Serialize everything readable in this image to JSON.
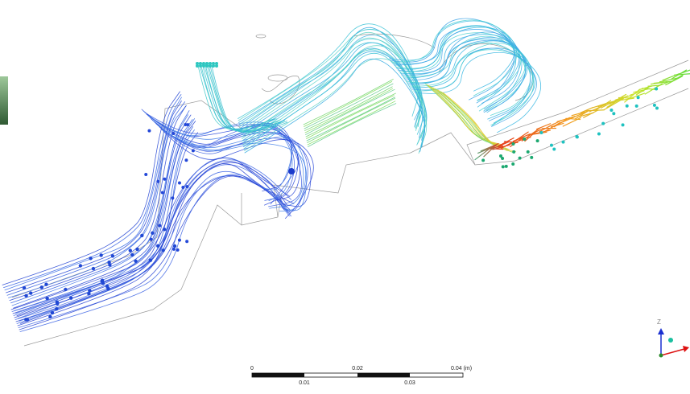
{
  "scale_bar": {
    "labels": [
      "0",
      "0.01",
      "0.02",
      "0.03",
      "0.04 (m)"
    ]
  },
  "triad": {
    "label": "Z"
  }
}
